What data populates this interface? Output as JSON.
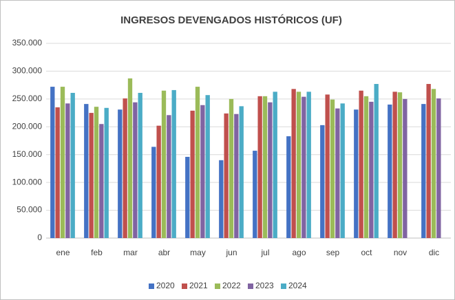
{
  "chart_data": {
    "type": "bar",
    "title": "INGRESOS DEVENGADOS HISTÓRICOS (UF)",
    "categories": [
      "ene",
      "feb",
      "mar",
      "abr",
      "may",
      "jun",
      "jul",
      "ago",
      "sep",
      "oct",
      "nov",
      "dic"
    ],
    "series": [
      {
        "name": "2020",
        "color": "#4472c4",
        "values": [
          272000,
          241000,
          231000,
          164000,
          146000,
          140000,
          157000,
          183000,
          203000,
          231000,
          240000,
          241000
        ]
      },
      {
        "name": "2021",
        "color": "#c0504d",
        "values": [
          235000,
          225000,
          251000,
          202000,
          229000,
          224000,
          255000,
          268000,
          258000,
          265000,
          263000,
          277000
        ]
      },
      {
        "name": "2022",
        "color": "#9bbb59",
        "values": [
          272000,
          236000,
          287000,
          265000,
          272000,
          250000,
          255000,
          263000,
          249000,
          255000,
          262000,
          268000
        ]
      },
      {
        "name": "2023",
        "color": "#8064a2",
        "values": [
          242000,
          205000,
          244000,
          221000,
          239000,
          223000,
          244000,
          254000,
          233000,
          245000,
          250000,
          251000
        ]
      },
      {
        "name": "2024",
        "color": "#4bacc6",
        "values": [
          261000,
          234000,
          261000,
          266000,
          257000,
          237000,
          263000,
          263000,
          242000,
          277000,
          null,
          null
        ]
      }
    ],
    "ylim": [
      0,
      350000
    ],
    "yticks": [
      0,
      {
        "value": 50000,
        "label": "50.000"
      },
      {
        "value": 100000,
        "label": "100.000"
      },
      {
        "value": 150000,
        "label": "150.000"
      },
      {
        "value": 200000,
        "label": "200.000"
      },
      {
        "value": 250000,
        "label": "250.000"
      },
      {
        "value": 300000,
        "label": "300.000"
      },
      {
        "value": 350000,
        "label": "350.000"
      }
    ],
    "grid": true,
    "legend": "bottom"
  }
}
